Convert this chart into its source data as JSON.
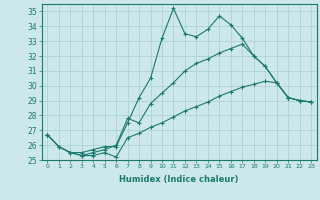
{
  "xlabel": "Humidex (Indice chaleur)",
  "ylabel": "",
  "background_color": "#cde8e8",
  "grid_color": "#aacece",
  "line_color": "#1a7a6e",
  "xlim": [
    -0.5,
    23.5
  ],
  "ylim": [
    25,
    35.5
  ],
  "yticks": [
    25,
    26,
    27,
    28,
    29,
    30,
    31,
    32,
    33,
    34,
    35
  ],
  "xticks": [
    0,
    1,
    2,
    3,
    4,
    5,
    6,
    7,
    8,
    9,
    10,
    11,
    12,
    13,
    14,
    15,
    16,
    17,
    18,
    19,
    20,
    21,
    22,
    23
  ],
  "series": [
    [
      26.7,
      25.9,
      25.5,
      25.5,
      25.7,
      25.9,
      25.9,
      27.5,
      29.2,
      30.5,
      33.2,
      35.2,
      33.5,
      33.3,
      33.8,
      34.7,
      34.1,
      33.2,
      32.0,
      31.3,
      30.2,
      29.2,
      29.0,
      28.9
    ],
    [
      26.7,
      25.9,
      25.5,
      25.3,
      25.5,
      25.7,
      26.0,
      27.8,
      27.5,
      28.8,
      29.5,
      30.2,
      31.0,
      31.5,
      31.8,
      32.2,
      32.5,
      32.8,
      32.0,
      31.3,
      30.2,
      29.2,
      29.0,
      28.9
    ],
    [
      26.7,
      25.9,
      25.5,
      25.3,
      25.3,
      25.5,
      25.2,
      26.5,
      26.8,
      27.2,
      27.5,
      27.9,
      28.3,
      28.6,
      28.9,
      29.3,
      29.6,
      29.9,
      30.1,
      30.3,
      30.2,
      29.2,
      29.0,
      28.9
    ]
  ]
}
